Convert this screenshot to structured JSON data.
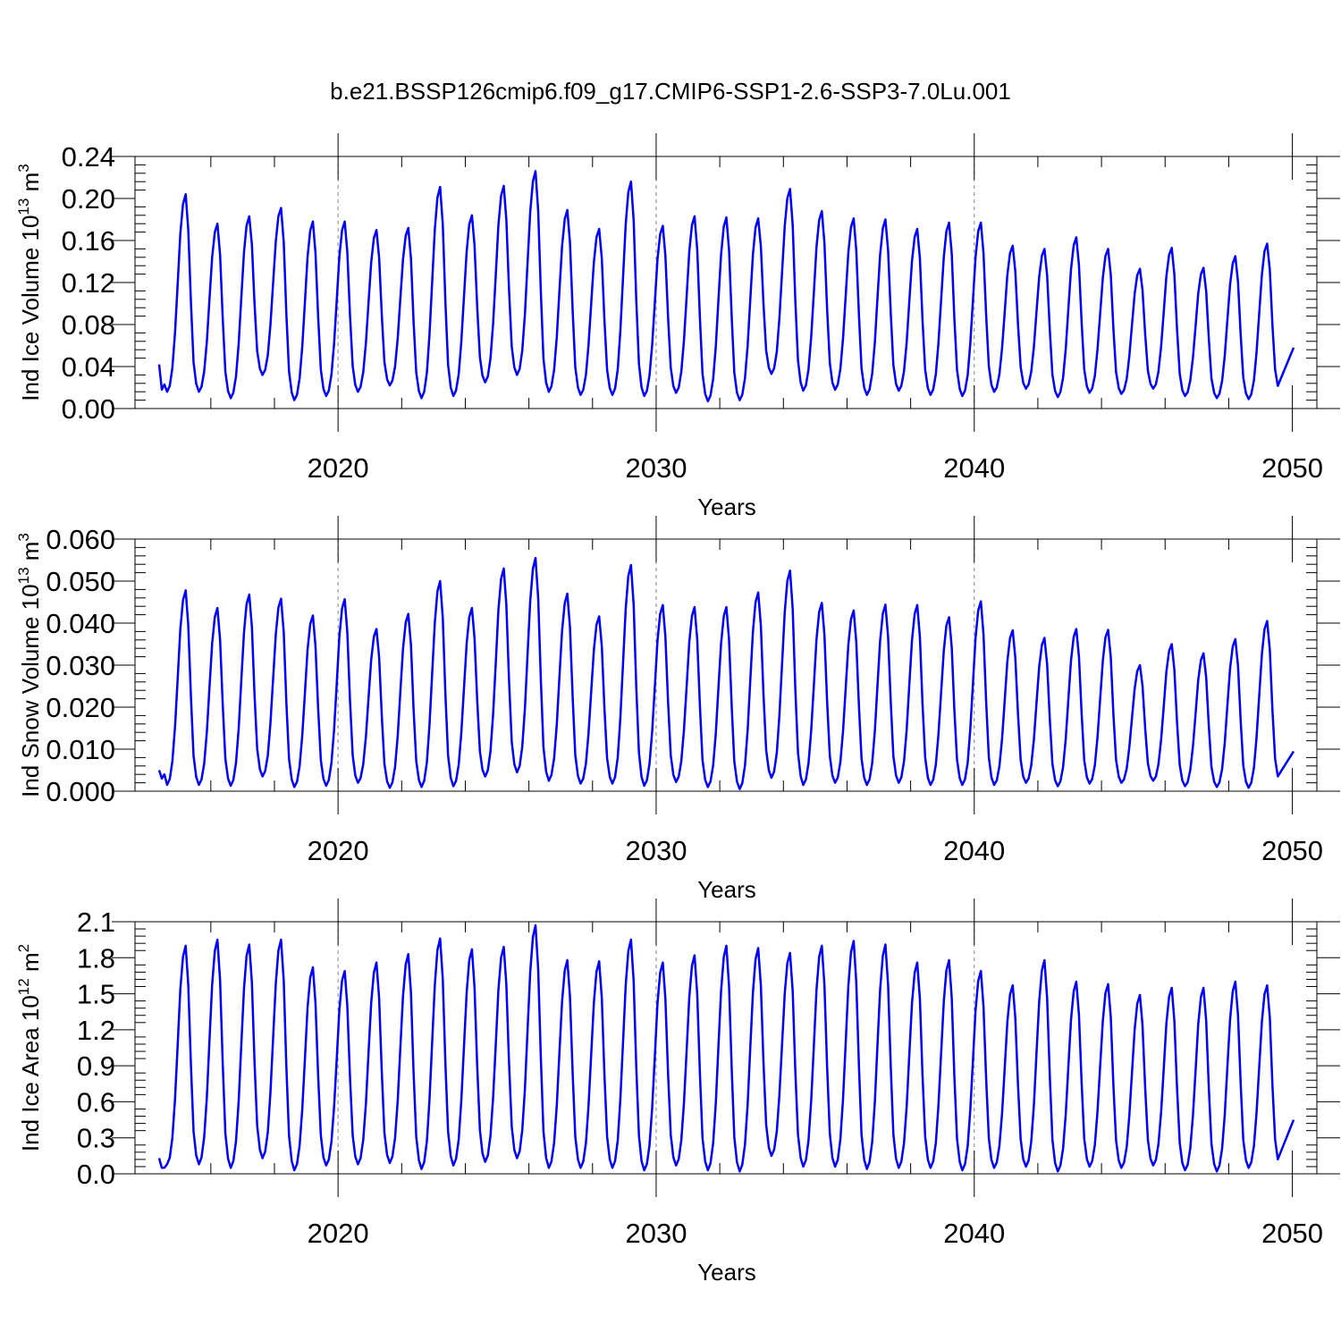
{
  "title": "b.e21.BSSP126cmip6.f09_g17.CMIP6-SSP1-2.6-SSP3-7.0Lu.001",
  "line_color": "#0000ff",
  "chart_data": [
    {
      "type": "line",
      "name": "ice-volume",
      "ylabel_main": "Ind Ice Volume 10",
      "ylabel_exp": "13",
      "ylabel_unit": " m",
      "ylabel_unit_exp": "3",
      "xlabel": "Years",
      "xlim": [
        2014.375,
        2050.04
      ],
      "ylim": [
        0,
        0.24
      ],
      "yticks": [
        0,
        0.04,
        0.08,
        0.12,
        0.16,
        0.2,
        0.24
      ],
      "ytick_labels": [
        "0.00",
        "0.04",
        "0.08",
        "0.12",
        "0.16",
        "0.20",
        "0.24"
      ],
      "xticks": [
        2020,
        2030,
        2040,
        2050
      ],
      "xtick_labels": [
        "2020",
        "2030",
        "2040",
        "2050"
      ],
      "start_year": 2014.375,
      "start_values": [
        0.042,
        0.018,
        0.023
      ],
      "min": 0.016,
      "annual_peaks": [
        0.204,
        0.176,
        0.183,
        0.191,
        0.178,
        0.178,
        0.17,
        0.172,
        0.211,
        0.184,
        0.212,
        0.226,
        0.189,
        0.171,
        0.216,
        0.174,
        0.183,
        0.182,
        0.181,
        0.209,
        0.188,
        0.181,
        0.18,
        0.171,
        0.177,
        0.177,
        0.155,
        0.152,
        0.163,
        0.152,
        0.133,
        0.153,
        0.134,
        0.145,
        0.157
      ],
      "annual_mins": [
        0.016,
        0.01,
        0.032,
        0.008,
        0.012,
        0.016,
        0.022,
        0.01,
        0.012,
        0.025,
        0.032,
        0.016,
        0.013,
        0.013,
        0.012,
        0.015,
        0.007,
        0.008,
        0.033,
        0.017,
        0.018,
        0.013,
        0.017,
        0.013,
        0.012,
        0.016,
        0.019,
        0.011,
        0.015,
        0.014,
        0.019,
        0.012,
        0.01,
        0.009,
        0.016
      ],
      "end_value": 0.058
    },
    {
      "type": "line",
      "name": "snow-volume",
      "ylabel_main": "Ind Snow Volume 10",
      "ylabel_exp": "13",
      "ylabel_unit": " m",
      "ylabel_unit_exp": "3",
      "xlabel": "Years",
      "xlim": [
        2014.375,
        2050.04
      ],
      "ylim": [
        0,
        0.06
      ],
      "yticks": [
        0,
        0.01,
        0.02,
        0.03,
        0.04,
        0.05,
        0.06
      ],
      "ytick_labels": [
        "0.000",
        "0.010",
        "0.020",
        "0.030",
        "0.040",
        "0.050",
        "0.060"
      ],
      "xticks": [
        2020,
        2030,
        2040,
        2050
      ],
      "xtick_labels": [
        "2020",
        "2030",
        "2040",
        "2050"
      ],
      "start_year": 2014.375,
      "start_values": [
        0.005,
        0.003,
        0.004
      ],
      "min": 0.0015,
      "annual_peaks": [
        0.0478,
        0.0436,
        0.0468,
        0.0458,
        0.0418,
        0.0457,
        0.0386,
        0.0422,
        0.05,
        0.0436,
        0.053,
        0.0555,
        0.047,
        0.0416,
        0.0538,
        0.0443,
        0.0438,
        0.0438,
        0.0473,
        0.0525,
        0.0448,
        0.043,
        0.0444,
        0.0443,
        0.0414,
        0.0452,
        0.0383,
        0.0365,
        0.0386,
        0.0384,
        0.03,
        0.035,
        0.0328,
        0.0362,
        0.0405
      ],
      "annual_mins": [
        0.0015,
        0.0013,
        0.0035,
        0.001,
        0.0013,
        0.002,
        0.0008,
        0.001,
        0.0012,
        0.0035,
        0.0045,
        0.0025,
        0.0018,
        0.0018,
        0.0013,
        0.0022,
        0.001,
        0.0005,
        0.0032,
        0.0015,
        0.002,
        0.0015,
        0.002,
        0.0015,
        0.0015,
        0.0015,
        0.002,
        0.0012,
        0.0018,
        0.002,
        0.0025,
        0.0012,
        0.001,
        0.0008,
        0.002
      ],
      "end_value": 0.0095
    },
    {
      "type": "line",
      "name": "ice-area",
      "ylabel_main": "Ind Ice Area 10",
      "ylabel_exp": "12",
      "ylabel_unit": " m",
      "ylabel_unit_exp": "2",
      "xlabel": "Years",
      "xlim": [
        2014.375,
        2050.04
      ],
      "ylim": [
        0,
        2.1
      ],
      "yticks": [
        0,
        0.3,
        0.6,
        0.9,
        1.2,
        1.5,
        1.8,
        2.1
      ],
      "ytick_labels": [
        "0.0",
        "0.3",
        "0.6",
        "0.9",
        "1.2",
        "1.5",
        "1.8",
        "2.1"
      ],
      "xticks": [
        2020,
        2030,
        2040,
        2050
      ],
      "xtick_labels": [
        "2020",
        "2030",
        "2040",
        "2050"
      ],
      "start_year": 2014.375,
      "start_values": [
        0.13,
        0.05,
        0.05
      ],
      "min": 0.08,
      "annual_peaks": [
        1.9,
        1.95,
        1.91,
        1.95,
        1.72,
        1.69,
        1.76,
        1.83,
        1.96,
        1.87,
        1.89,
        2.07,
        1.78,
        1.77,
        1.95,
        1.76,
        1.82,
        1.9,
        1.88,
        1.84,
        1.9,
        1.94,
        1.91,
        1.76,
        1.78,
        1.69,
        1.57,
        1.78,
        1.6,
        1.58,
        1.49,
        1.55,
        1.55,
        1.6,
        1.57
      ],
      "annual_mins": [
        0.08,
        0.05,
        0.13,
        0.03,
        0.07,
        0.08,
        0.09,
        0.04,
        0.07,
        0.1,
        0.13,
        0.05,
        0.05,
        0.05,
        0.03,
        0.07,
        0.03,
        0.02,
        0.15,
        0.06,
        0.06,
        0.04,
        0.05,
        0.05,
        0.03,
        0.05,
        0.06,
        0.02,
        0.06,
        0.05,
        0.07,
        0.03,
        0.02,
        0.05,
        0.06
      ],
      "end_value": 0.45
    }
  ]
}
